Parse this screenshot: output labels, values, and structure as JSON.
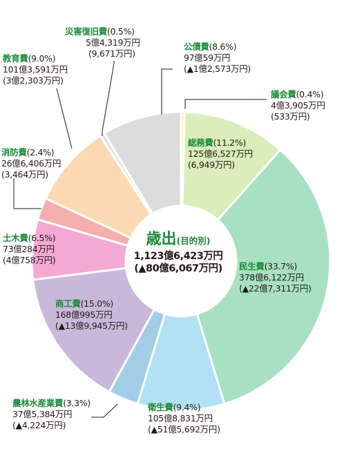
{
  "chart_data": {
    "type": "pie",
    "title": "歳出",
    "title_note": "(目的別)",
    "total_amount": "1,123億6,423万円",
    "total_change": "(▲80億6,067万円)",
    "slices": [
      {
        "name": "議会費",
        "pct": 0.4,
        "pct_label": "(0.4%)",
        "amount": "4億3,905万円",
        "change": "(533万円)",
        "color": "#fff3a8"
      },
      {
        "name": "総務費",
        "pct": 11.2,
        "pct_label": "(11.2%)",
        "amount": "125億6,527万円",
        "change": "(6,949万円)",
        "color": "#d9eebb"
      },
      {
        "name": "民生費",
        "pct": 33.7,
        "pct_label": "(33.7%)",
        "amount": "378億6,122万円",
        "change": "(▲22億7,311万円)",
        "color": "#a8e0c2"
      },
      {
        "name": "衛生費",
        "pct": 9.4,
        "pct_label": "(9.4%)",
        "amount": "105億8,831万円",
        "change": "(▲51億5,692万円)",
        "color": "#b2e1f4"
      },
      {
        "name": "農林水産業費",
        "pct": 3.3,
        "pct_label": "(3.3%)",
        "amount": "37億5,384万円",
        "change": "(▲4,224万円)",
        "color": "#a3cde6"
      },
      {
        "name": "商工費",
        "pct": 15.0,
        "pct_label": "(15.0%)",
        "amount": "168億995万円",
        "change": "(▲13億9,945万円)",
        "color": "#c9b8da"
      },
      {
        "name": "土木費",
        "pct": 6.5,
        "pct_label": "(6.5%)",
        "amount": "73億284万円",
        "change": "(4億758万円)",
        "color": "#f4a9d3"
      },
      {
        "name": "消防費",
        "pct": 2.4,
        "pct_label": "(2.4%)",
        "amount": "26億6,406万円",
        "change": "(3,464万円)",
        "color": "#f5aeae"
      },
      {
        "name": "教育費",
        "pct": 9.0,
        "pct_label": "(9.0%)",
        "amount": "101億3,591万円",
        "change": "(3億2,303万円)",
        "color": "#fcd9b2"
      },
      {
        "name": "災害復旧費",
        "pct": 0.5,
        "pct_label": "(0.5%)",
        "amount": "5億4,319万円",
        "change": "(9,671万円)",
        "color": "#e3e3e3"
      },
      {
        "name": "公債費",
        "pct": 8.6,
        "pct_label": "(8.6%)",
        "amount": "97億59万円",
        "change": "(▲1億2,573万円)",
        "color": "#dcdcdc"
      }
    ]
  }
}
